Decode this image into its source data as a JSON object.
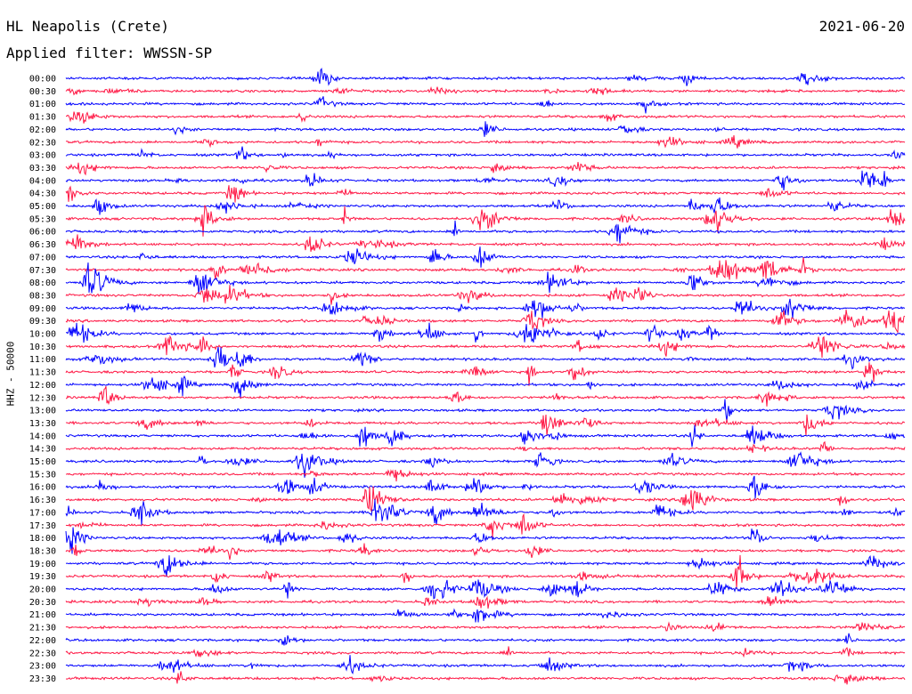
{
  "header": {
    "station": "HL Neapolis (Crete)",
    "date": "2021-06-20",
    "filter": "Applied filter: WWSSN-SP"
  },
  "axis": {
    "channel_label": "HHZ - 50000"
  },
  "colors": {
    "odd": "#0000ff",
    "even": "#ff1744"
  },
  "chart_data": {
    "type": "line",
    "title": "HL Neapolis (Crete)",
    "subtitle": "Applied filter: WWSSN-SP",
    "ylabel": "HHZ - 50000",
    "trace_interval_minutes": 30,
    "row_labels": [
      "00:00",
      "00:30",
      "01:00",
      "01:30",
      "02:00",
      "02:30",
      "03:00",
      "03:30",
      "04:00",
      "04:30",
      "05:00",
      "05:30",
      "06:00",
      "06:30",
      "07:00",
      "07:30",
      "08:00",
      "08:30",
      "09:00",
      "09:30",
      "10:00",
      "10:30",
      "11:00",
      "11:30",
      "12:00",
      "12:30",
      "13:00",
      "13:30",
      "14:00",
      "14:30",
      "15:00",
      "15:30",
      "16:00",
      "16:30",
      "17:00",
      "17:30",
      "18:00",
      "18:30",
      "19:00",
      "19:30",
      "20:00",
      "20:30",
      "21:00",
      "21:30",
      "22:00",
      "22:30",
      "23:00",
      "23:30"
    ],
    "series_colors": [
      "blue",
      "red"
    ],
    "note": "Helicorder: each row is a 30-minute seismic trace, alternating blue and red."
  }
}
